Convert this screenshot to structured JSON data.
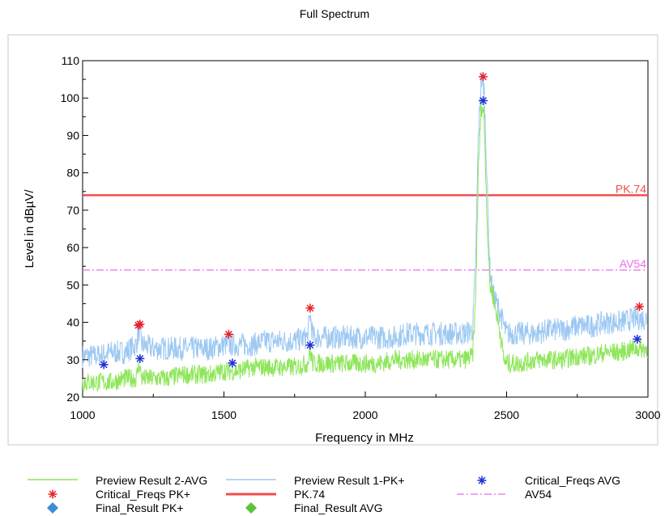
{
  "chart_data": {
    "type": "line",
    "title": "Full Spectrum",
    "xlabel": "Frequency in MHz",
    "ylabel": "Level in dBµV/",
    "xlim": [
      1000,
      3000
    ],
    "ylim": [
      20,
      110
    ],
    "x_ticks": [
      1000,
      1500,
      2000,
      2500,
      3000
    ],
    "y_ticks": [
      20,
      30,
      40,
      50,
      60,
      70,
      80,
      90,
      100,
      110
    ],
    "grid": false,
    "legend_position": "bottom",
    "limit_lines": [
      {
        "name": "PK.74",
        "label": "PK.74",
        "value": 74,
        "color": "#f24b4b",
        "style": "solid"
      },
      {
        "name": "AV54",
        "label": "AV54",
        "value": 54,
        "color": "#e86ee8",
        "style": "dashdot"
      }
    ],
    "series": [
      {
        "name": "Preview Result 1-PK+",
        "color": "#9cc8f2",
        "x": [
          1000,
          1050,
          1100,
          1150,
          1190,
          1200,
          1210,
          1250,
          1300,
          1350,
          1400,
          1450,
          1500,
          1550,
          1600,
          1650,
          1700,
          1750,
          1795,
          1805,
          1815,
          1850,
          1900,
          1950,
          2000,
          2050,
          2100,
          2150,
          2200,
          2250,
          2300,
          2350,
          2380,
          2390,
          2400,
          2410,
          2420,
          2430,
          2440,
          2450,
          2460,
          2470,
          2480,
          2490,
          2500,
          2550,
          2600,
          2650,
          2700,
          2750,
          2800,
          2850,
          2900,
          2950,
          3000
        ],
        "y": [
          31,
          31,
          32,
          32,
          34,
          38,
          34,
          33,
          33,
          33,
          33,
          33,
          34,
          34,
          34,
          35,
          35,
          35,
          36,
          42,
          36,
          36,
          36,
          36,
          36,
          36,
          36,
          37,
          37,
          37,
          37,
          37,
          38,
          55,
          90,
          105,
          103,
          80,
          55,
          48,
          46,
          44,
          42,
          39,
          37,
          37,
          37,
          38,
          38,
          39,
          39,
          40,
          40,
          41,
          41
        ]
      },
      {
        "name": "Preview Result 2-AVG",
        "color": "#8ee65a",
        "x": [
          1000,
          1050,
          1100,
          1150,
          1190,
          1200,
          1210,
          1250,
          1300,
          1350,
          1400,
          1450,
          1500,
          1550,
          1600,
          1650,
          1700,
          1750,
          1795,
          1805,
          1815,
          1850,
          1900,
          1950,
          2000,
          2050,
          2100,
          2150,
          2200,
          2250,
          2300,
          2350,
          2380,
          2390,
          2400,
          2410,
          2420,
          2430,
          2440,
          2450,
          2460,
          2470,
          2480,
          2490,
          2500,
          2550,
          2600,
          2650,
          2700,
          2750,
          2800,
          2850,
          2900,
          2950,
          3000
        ],
        "y": [
          24,
          24,
          24,
          25,
          25,
          29,
          25,
          25,
          25,
          26,
          26,
          26,
          27,
          27,
          28,
          28,
          28,
          28,
          29,
          32,
          29,
          29,
          29,
          29,
          29,
          29,
          30,
          30,
          30,
          30,
          30,
          30,
          31,
          45,
          80,
          98,
          96,
          70,
          50,
          48,
          44,
          40,
          36,
          30,
          29,
          29,
          30,
          30,
          30,
          31,
          31,
          32,
          32,
          33,
          33
        ]
      },
      {
        "name": "Critical_Freqs PK+",
        "color": "#e8202a",
        "marker": "asterisk",
        "x": [
          1197,
          1203,
          1517,
          1805,
          2417,
          2970
        ],
        "y": [
          39.2,
          39.5,
          36.8,
          43.8,
          105.7,
          44.2
        ]
      },
      {
        "name": "Critical_Freqs AVG",
        "color": "#1d2fd6",
        "marker": "asterisk",
        "x": [
          1075,
          1203,
          1530,
          1805,
          2417,
          2962
        ],
        "y": [
          28.7,
          30.3,
          29.1,
          33.9,
          99.3,
          35.5
        ]
      }
    ],
    "legend": [
      {
        "label": "Preview  Result 2-AVG",
        "symbol": "line",
        "color": "#8ee65a"
      },
      {
        "label": "Preview  Result 1-PK+",
        "symbol": "line",
        "color": "#9cc8f2"
      },
      {
        "label": "Critical_Freqs AVG",
        "symbol": "asterisk",
        "color": "#1d2fd6"
      },
      {
        "label": "Critical_Freqs PK+",
        "symbol": "asterisk",
        "color": "#e8202a"
      },
      {
        "label": "PK.74",
        "symbol": "thick-line",
        "color": "#f24b4b"
      },
      {
        "label": "AV54",
        "symbol": "dashdot",
        "color": "#e86ee8"
      },
      {
        "label": "Final_Result PK+",
        "symbol": "diamond",
        "color": "#3a8fd6"
      },
      {
        "label": "Final_Result AVG",
        "symbol": "diamond",
        "color": "#5ac43a"
      }
    ]
  }
}
